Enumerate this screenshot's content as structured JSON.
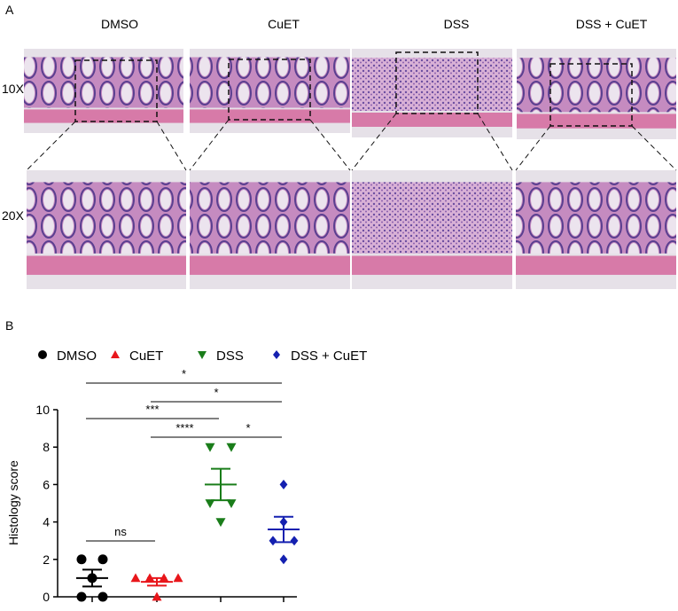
{
  "panel_a": {
    "label": "A",
    "columns": [
      "DMSO",
      "CuET",
      "DSS",
      "DSS + CuET"
    ],
    "rows": [
      "10X",
      "20X"
    ]
  },
  "chart_data": {
    "type": "scatter",
    "panel_label": "B",
    "y_label": "Histology score",
    "ylim": [
      0,
      10
    ],
    "yticks": [
      0,
      2,
      4,
      6,
      8,
      10
    ],
    "series": [
      {
        "name": "DMSO",
        "color": "#000000",
        "marker": "circle",
        "values": [
          2,
          2,
          1,
          0,
          0
        ],
        "mean": 1,
        "sem": 0.45
      },
      {
        "name": "CuET",
        "color": "#e8161b",
        "marker": "triangle-up",
        "values": [
          1,
          1,
          1,
          1,
          0
        ],
        "mean": 0.8,
        "sem": 0.2
      },
      {
        "name": "DSS",
        "color": "#1a7d1a",
        "marker": "triangle-down",
        "values": [
          8,
          8,
          5,
          5,
          4
        ],
        "mean": 6,
        "sem": 0.84
      },
      {
        "name": "DSS + CuET",
        "color": "#1420b0",
        "marker": "diamond",
        "values": [
          6,
          4,
          3,
          3,
          2
        ],
        "mean": 3.6,
        "sem": 0.68
      }
    ],
    "comparisons": [
      {
        "label": "*",
        "groups": [
          0,
          3
        ]
      },
      {
        "label": "*",
        "groups": [
          1,
          3
        ]
      },
      {
        "label": "***",
        "groups": [
          0,
          2
        ]
      },
      {
        "label": "****",
        "groups": [
          1,
          2
        ]
      },
      {
        "label": "*",
        "groups": [
          2,
          3
        ]
      },
      {
        "label": "ns",
        "groups": [
          0,
          1
        ]
      }
    ]
  }
}
